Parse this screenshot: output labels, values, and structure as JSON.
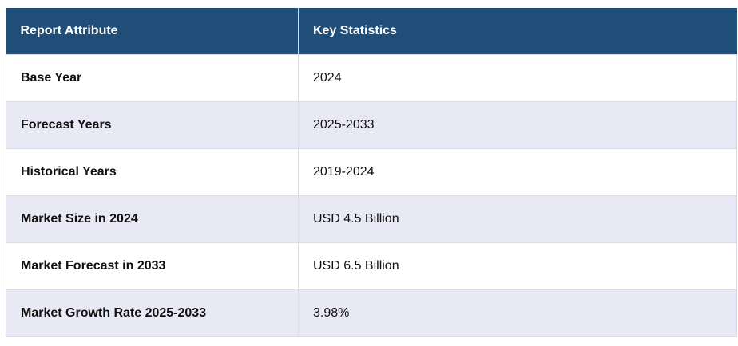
{
  "table": {
    "headers": [
      "Report Attribute",
      "Key Statistics"
    ],
    "rows": [
      {
        "attribute": "Base Year",
        "value": "2024"
      },
      {
        "attribute": "Forecast Years",
        "value": "2025-2033"
      },
      {
        "attribute": "Historical Years",
        "value": "2019-2024"
      },
      {
        "attribute": "Market Size in 2024",
        "value": "USD 4.5 Billion"
      },
      {
        "attribute": "Market Forecast in 2033",
        "value": "USD 6.5 Billion"
      },
      {
        "attribute": "Market Growth Rate 2025-2033",
        "value": "3.98%"
      }
    ],
    "colors": {
      "header_bg": "#1f4e79",
      "header_text": "#ffffff",
      "alt_row_bg": "#e8e9f5",
      "row_bg": "#ffffff"
    }
  }
}
